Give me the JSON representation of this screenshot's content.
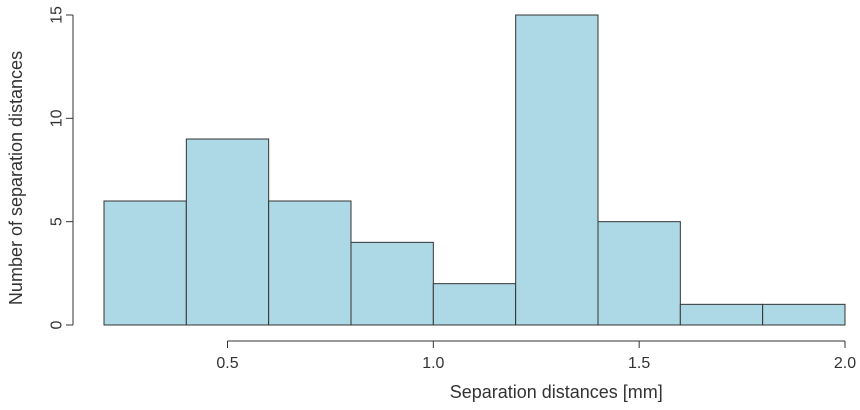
{
  "chart_data": {
    "type": "bar",
    "subtype": "histogram",
    "title": "",
    "xlabel": "Separation distances [mm]",
    "ylabel": "Number of separation distances",
    "bins": [
      {
        "x0": 0.2,
        "x1": 0.4,
        "count": 6
      },
      {
        "x0": 0.4,
        "x1": 0.6,
        "count": 9
      },
      {
        "x0": 0.6,
        "x1": 0.8,
        "count": 6
      },
      {
        "x0": 0.8,
        "x1": 1.0,
        "count": 4
      },
      {
        "x0": 1.0,
        "x1": 1.2,
        "count": 2
      },
      {
        "x0": 1.2,
        "x1": 1.4,
        "count": 15
      },
      {
        "x0": 1.4,
        "x1": 1.6,
        "count": 5
      },
      {
        "x0": 1.6,
        "x1": 1.8,
        "count": 1
      },
      {
        "x0": 1.8,
        "x1": 2.0,
        "count": 1
      }
    ],
    "x_ticks": [
      "0.5",
      "1.0",
      "1.5",
      "2.0"
    ],
    "y_ticks": [
      "0",
      "5",
      "10",
      "15"
    ],
    "xlim": [
      0.2,
      2.0
    ],
    "ylim": [
      0,
      15
    ],
    "grid": false,
    "legend": "none",
    "colors": {
      "bar_fill": "#add8e6",
      "bar_stroke": "#333333",
      "axis": "#333333",
      "text": "#333333"
    }
  }
}
